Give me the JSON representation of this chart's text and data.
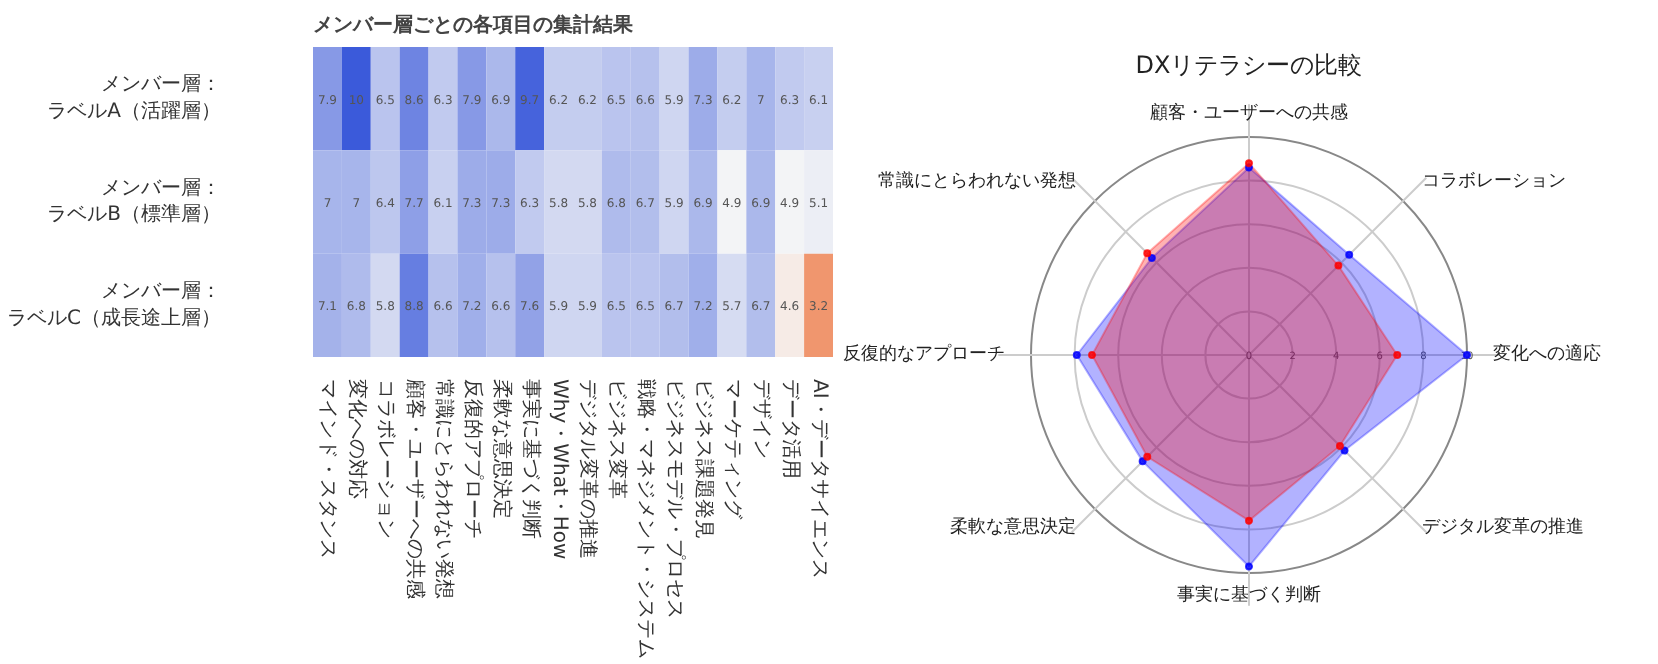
{
  "chart_data": [
    {
      "type": "heatmap",
      "title": "メンバー層ごとの各項目の集計結果",
      "categories": [
        "マインド・スタンス",
        "変化への対応",
        "コラボレーション",
        "顧客・ユーザーへの共感",
        "常識にとらわれない発想",
        "反復的アプローチ",
        "柔軟な意思決定",
        "事実に基づく判断",
        "Why・What・How",
        "デジタル変革の推進",
        "ビジネス変革",
        "戦略・マネジメント・システム",
        "ビジネスモデル・プロセス",
        "ビジネス課題発見",
        "マーケティング",
        "デザイン",
        "データ活用",
        "AI・データサイエンス"
      ],
      "y_categories": [
        "メンバー層：ラベルA（活躍層）",
        "メンバー層：ラベルB（標準層）",
        "メンバー層：ラベルC（成長途上層）"
      ],
      "cells": [
        [
          7.9,
          10,
          6.5,
          8.6,
          6.3,
          7.9,
          6.9,
          9.7,
          6.2,
          6.2,
          6.5,
          6.6,
          5.9,
          7.3,
          6.2,
          7,
          6.3,
          6.1
        ],
        [
          7,
          7,
          6.4,
          7.7,
          6.1,
          7.3,
          7.3,
          6.3,
          5.8,
          5.8,
          6.8,
          6.7,
          5.9,
          6.9,
          4.9,
          6.9,
          4.9,
          5.1
        ],
        [
          7.1,
          6.8,
          5.8,
          8.8,
          6.6,
          7.2,
          6.6,
          7.6,
          5.9,
          5.9,
          6.5,
          6.5,
          6.7,
          7.2,
          5.7,
          6.7,
          4.6,
          3.2
        ]
      ],
      "data_labels": true
    },
    {
      "type": "radar",
      "title": "DXリテラシーの比較",
      "categories": [
        "顧客・ユーザーへの共感",
        "コラボレーション",
        "変化への適応",
        "デジタル変革の推進",
        "事実に基づく判断",
        "柔軟な意思決定",
        "反復的なアプローチ",
        "常識にとらわれない発想"
      ],
      "series": [
        {
          "color": "#0000ff",
          "values": [
            8.6,
            6.5,
            10,
            6.2,
            9.7,
            6.9,
            7.9,
            6.3
          ]
        },
        {
          "color": "#ff0000",
          "values": [
            8.8,
            5.8,
            6.8,
            5.9,
            7.6,
            6.6,
            7.2,
            6.6
          ]
        }
      ],
      "ylim": [
        0,
        10
      ],
      "yticks": [
        0,
        2,
        4,
        6,
        8,
        10
      ],
      "grid": true
    }
  ]
}
